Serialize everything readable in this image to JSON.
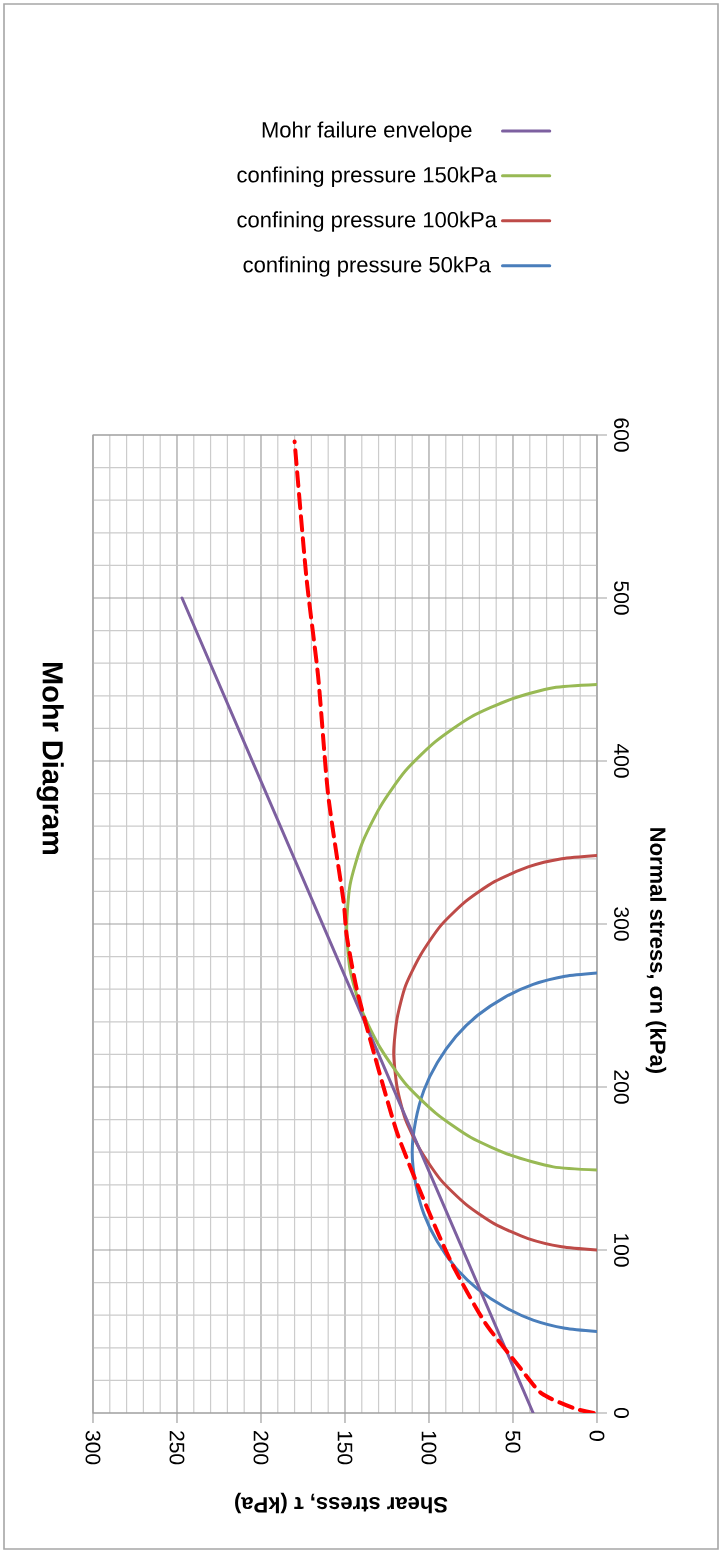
{
  "chart_data": {
    "type": "line",
    "title": "Mohr Diagram",
    "xlabel": "Shear stress, τ (kPa)",
    "ylabel": "Normal stress, σn (kPa)",
    "xlim": [
      300,
      0
    ],
    "ylim": [
      0,
      600
    ],
    "xticks": [
      300,
      250,
      200,
      150,
      100,
      50,
      0
    ],
    "yticks": [
      0,
      100,
      200,
      300,
      400,
      500,
      600
    ],
    "grid": true,
    "legend": "top",
    "line_style": "solid",
    "series": [
      {
        "name": "confining pressure 50kPa",
        "color": "#4a7ebb",
        "values": [
          50,
          52,
          57,
          65,
          76,
          89,
          105,
          122,
          141,
          160,
          179,
          198,
          215,
          231,
          244,
          255,
          263,
          268,
          270
        ],
        "x": [
          0,
          19,
          38,
          55,
          71,
          84,
          95,
          103,
          108,
          110,
          108,
          103,
          95,
          84,
          71,
          55,
          38,
          19,
          0
        ]
      },
      {
        "name": "confining pressure 100kPa",
        "color": "#be4b48",
        "values": [
          100,
          102,
          107,
          116,
          128,
          143,
          161,
          180,
          200,
          221,
          242,
          262,
          281,
          299,
          314,
          326,
          335,
          340,
          342
        ],
        "x": [
          0,
          21,
          41,
          61,
          78,
          93,
          105,
          114,
          119,
          121,
          119,
          114,
          105,
          93,
          78,
          61,
          41,
          21,
          0
        ]
      },
      {
        "name": "confining pressure 150kPa",
        "color": "#98b954",
        "values": [
          149,
          151,
          158,
          169,
          184,
          202,
          224,
          247,
          272,
          298,
          324,
          349,
          372,
          394,
          412,
          427,
          438,
          445,
          447
        ],
        "x": [
          0,
          26,
          51,
          75,
          96,
          114,
          129,
          140,
          147,
          149,
          147,
          140,
          129,
          114,
          96,
          75,
          51,
          26,
          0
        ]
      },
      {
        "name": "Mohr failure envelope",
        "color": "#7d60a0",
        "values": [
          0,
          500
        ],
        "x": [
          38,
          247
        ]
      },
      {
        "color": "#ff0000",
        "line_style": "dashed",
        "values": [
          0,
          3,
          12,
          28,
          56,
          93,
          133,
          172,
          218,
          260,
          293,
          315,
          379,
          452,
          513,
          596
        ],
        "x": [
          2,
          14,
          33,
          46,
          67,
          87,
          104,
          119,
          132,
          143,
          149,
          151,
          160,
          166,
          173,
          180
        ]
      }
    ]
  }
}
